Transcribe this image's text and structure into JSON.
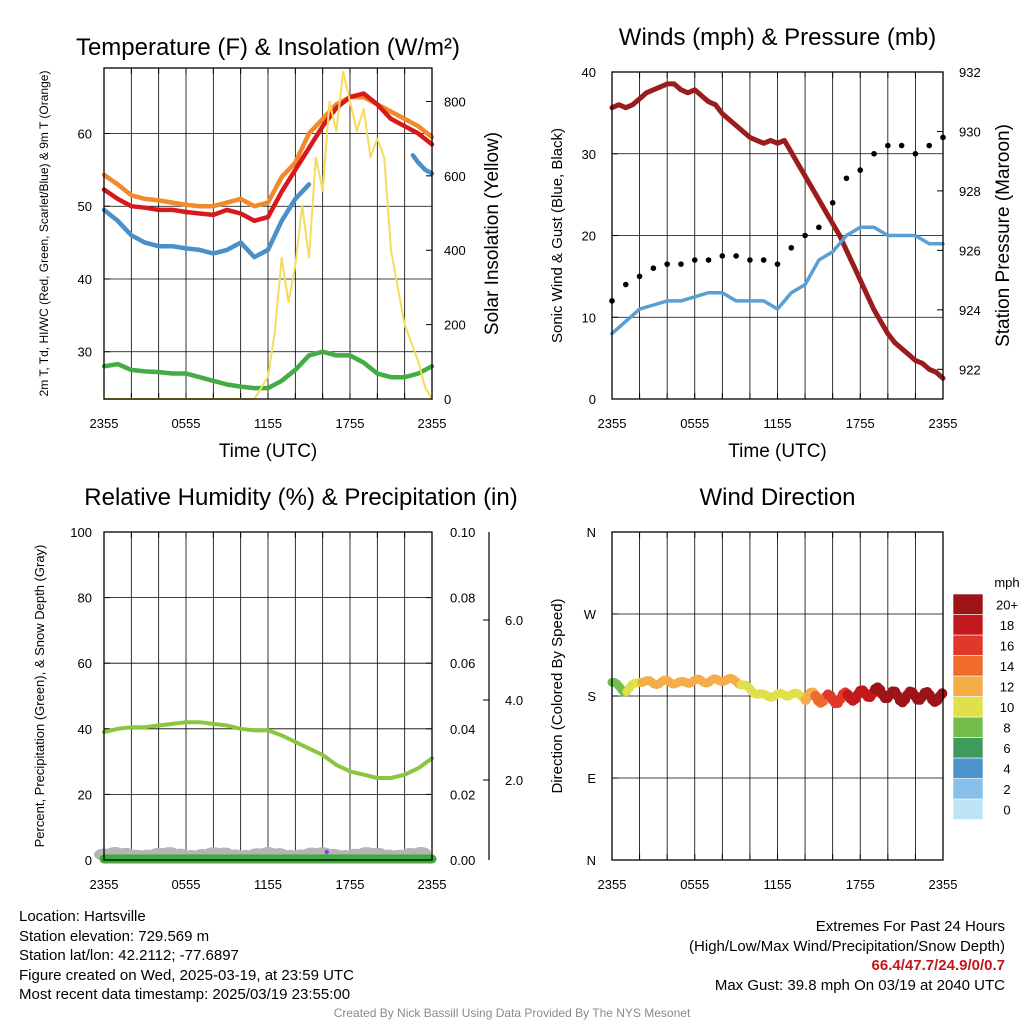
{
  "chart_data": [
    {
      "type": "line",
      "title": "Temperature (F) & Insolation (W/m²)",
      "xlabel": "Time (UTC)",
      "ylabel": "2m T, Td, HI/WC (Red, Green, Scarlet/Blue) & 9m T (Orange)",
      "y2label": "Solar Insolation (Yellow)",
      "xticks": [
        "2355",
        "0555",
        "1155",
        "1755",
        "2355"
      ],
      "x_range_hours": [
        0,
        24
      ],
      "ylim": [
        23.5,
        69
      ],
      "yticks": [
        30,
        40,
        50,
        60
      ],
      "y2lim": [
        0,
        890
      ],
      "y2ticks": [
        0,
        200,
        400,
        600,
        800
      ],
      "grid": true,
      "series": [
        {
          "color": "#f28a2c",
          "axis": "left",
          "x": [
            0,
            1,
            2,
            3,
            4,
            5,
            6,
            7,
            8,
            9,
            10,
            11,
            12,
            13,
            14,
            15,
            16,
            17,
            18,
            19,
            20,
            21,
            22,
            23,
            24
          ],
          "values": [
            54.3,
            53,
            51.5,
            51,
            50.8,
            50.5,
            50.2,
            50,
            50,
            50.5,
            51,
            50,
            50.5,
            54,
            56,
            60,
            62,
            64,
            65,
            65,
            64,
            63,
            62,
            61,
            59.5
          ]
        },
        {
          "color": "#d7191c",
          "axis": "left",
          "x": [
            0,
            1,
            2,
            3,
            4,
            5,
            6,
            7,
            8,
            9,
            10,
            11,
            12,
            13,
            14,
            15,
            16,
            17,
            18,
            19,
            20,
            21,
            22,
            23,
            24
          ],
          "values": [
            52.3,
            51,
            50,
            49.8,
            49.5,
            49.5,
            49.2,
            49,
            48.8,
            49.5,
            49,
            48,
            48.5,
            52,
            55,
            58,
            61,
            63.5,
            65,
            65.5,
            64,
            62,
            61,
            60,
            58.5
          ]
        },
        {
          "color": "#4a8fc8",
          "axis": "left",
          "x": [
            0,
            1,
            2,
            3,
            4,
            5,
            6,
            7,
            8,
            9,
            10,
            11,
            12,
            13,
            14,
            15
          ],
          "values": [
            49.5,
            48,
            46,
            45,
            44.5,
            44.5,
            44.2,
            44,
            43.5,
            44,
            45,
            43,
            44,
            48,
            51,
            53
          ]
        },
        {
          "color": "#4a8fc8",
          "axis": "left",
          "x": [
            22.6,
            23,
            23.5,
            24
          ],
          "values": [
            57,
            56,
            55,
            54.5
          ]
        },
        {
          "color": "#44ac44",
          "axis": "left",
          "x": [
            0,
            1,
            2,
            3,
            4,
            5,
            6,
            7,
            8,
            9,
            10,
            11,
            12,
            13,
            14,
            15,
            16,
            17,
            18,
            19,
            20,
            21,
            22,
            23,
            24
          ],
          "values": [
            28,
            28.3,
            27.5,
            27.3,
            27.2,
            27,
            27,
            26.5,
            26,
            25.5,
            25.2,
            25,
            25,
            26,
            27.5,
            29.5,
            30,
            29.5,
            29.5,
            28.5,
            27,
            26.5,
            26.5,
            27,
            28
          ]
        },
        {
          "color": "#f5dc5a",
          "axis": "right",
          "x": [
            0,
            10,
            11,
            12,
            12.5,
            13,
            13.5,
            14,
            14.5,
            15,
            15.5,
            16,
            16.5,
            17,
            17.5,
            18,
            18.5,
            19,
            19.5,
            20,
            20.5,
            21,
            21.5,
            22,
            22.5,
            23,
            23.5,
            24
          ],
          "values": [
            0,
            0,
            0,
            60,
            180,
            380,
            260,
            360,
            520,
            380,
            650,
            560,
            800,
            720,
            880,
            800,
            720,
            780,
            650,
            700,
            650,
            400,
            300,
            200,
            150,
            100,
            30,
            0
          ]
        }
      ]
    },
    {
      "type": "scatter",
      "title": "Winds (mph) & Pressure (mb)",
      "xlabel": "Time (UTC)",
      "ylabel": "Sonic Wind & Gust (Blue, Black)",
      "y2label": "Station Pressure (Maroon)",
      "xticks": [
        "2355",
        "0555",
        "1155",
        "1755",
        "2355"
      ],
      "x_range_hours": [
        0,
        24
      ],
      "ylim": [
        0,
        40
      ],
      "yticks": [
        0,
        10,
        20,
        30,
        40
      ],
      "y2lim": [
        921,
        932
      ],
      "y2ticks": [
        922,
        924,
        926,
        928,
        930,
        932
      ],
      "grid": true,
      "series": [
        {
          "color": "#9b1c1c",
          "type": "line",
          "axis": "right",
          "x": [
            0,
            0.5,
            1,
            1.5,
            2,
            2.5,
            3,
            3.5,
            4,
            4.5,
            5,
            5.5,
            6,
            6.5,
            7,
            7.5,
            8,
            8.5,
            9,
            9.5,
            10,
            10.5,
            11,
            11.5,
            12,
            12.5,
            13,
            13.5,
            14,
            14.5,
            15,
            15.5,
            16,
            16.5,
            17,
            17.5,
            18,
            18.5,
            19,
            19.5,
            20,
            20.5,
            21,
            21.5,
            22,
            22.5,
            23,
            23.5,
            24
          ],
          "values": [
            930.8,
            930.9,
            930.8,
            930.9,
            931.1,
            931.3,
            931.4,
            931.5,
            931.6,
            931.6,
            931.4,
            931.3,
            931.4,
            931.2,
            931.0,
            930.9,
            930.6,
            930.4,
            930.2,
            930.0,
            929.8,
            929.7,
            929.6,
            929.7,
            929.6,
            929.7,
            929.3,
            928.9,
            928.5,
            928.1,
            927.7,
            927.3,
            926.9,
            926.5,
            926.0,
            925.5,
            925.0,
            924.5,
            924.0,
            923.6,
            923.2,
            922.9,
            922.7,
            922.5,
            922.3,
            922.2,
            922.0,
            921.9,
            921.7
          ]
        },
        {
          "color": "#5a9fd4",
          "type": "line",
          "axis": "left",
          "x": [
            0,
            1,
            2,
            3,
            4,
            5,
            6,
            7,
            8,
            9,
            10,
            11,
            12,
            13,
            14,
            15,
            16,
            17,
            18,
            19,
            20,
            21,
            22,
            23,
            24
          ],
          "values": [
            8,
            9.5,
            11,
            11.5,
            12,
            12,
            12.5,
            13,
            13,
            12,
            12,
            12,
            11,
            13,
            14,
            17,
            18,
            20,
            21,
            21,
            20,
            20,
            20,
            19,
            19
          ]
        },
        {
          "color": "#000000",
          "type": "scatter",
          "axis": "left",
          "x": [
            0,
            1,
            2,
            3,
            4,
            5,
            6,
            7,
            8,
            9,
            10,
            11,
            12,
            13,
            14,
            15,
            16,
            17,
            18,
            19,
            20,
            21,
            22,
            23,
            24
          ],
          "values": [
            12,
            14,
            15,
            16,
            16.5,
            16.5,
            17,
            17,
            17.5,
            17.5,
            17,
            17,
            16.5,
            18.5,
            20,
            21,
            24,
            27,
            28,
            30,
            31,
            31,
            30,
            31,
            32
          ]
        }
      ]
    },
    {
      "type": "line",
      "title": "Relative Humidity (%) & Precipitation (in)",
      "ylabel": "Percent, Precipitation (Green), & Snow Depth (Gray)",
      "xticks": [
        "2355",
        "0555",
        "1155",
        "1755",
        "2355"
      ],
      "x_range_hours": [
        0,
        24
      ],
      "ylim": [
        0,
        100
      ],
      "yticks": [
        0,
        20,
        40,
        60,
        80,
        100
      ],
      "y2lim": [
        0,
        0.1
      ],
      "y2ticks": [
        "0.00",
        "0.02",
        "0.04",
        "0.06",
        "0.08",
        "0.10"
      ],
      "y3lim": [
        0,
        8.2
      ],
      "y3ticks": [
        "2.0",
        "4.0",
        "6.0"
      ],
      "grid": true,
      "series": [
        {
          "color": "#8cc63f",
          "axis": "left",
          "x": [
            0,
            1,
            2,
            3,
            4,
            5,
            6,
            7,
            8,
            9,
            10,
            11,
            12,
            13,
            14,
            15,
            16,
            17,
            18,
            19,
            20,
            21,
            22,
            23,
            24
          ],
          "values": [
            39,
            40,
            40.5,
            40.5,
            41,
            41.5,
            42,
            42,
            41.5,
            41,
            40,
            39.5,
            39.5,
            38,
            36,
            34,
            32,
            29,
            27,
            26,
            25,
            25,
            26,
            28,
            31
          ]
        },
        {
          "color": "#3cab3c",
          "axis": "right",
          "x": [
            0,
            24
          ],
          "values": [
            0,
            0
          ]
        },
        {
          "color": "#b4b4b4",
          "axis": "left",
          "x": [
            0,
            24
          ],
          "values": [
            0.5,
            0.5
          ]
        }
      ]
    },
    {
      "type": "scatter",
      "title": "Wind Direction",
      "ylabel": "Direction (Colored By Speed)",
      "xticks": [
        "2355",
        "0555",
        "1155",
        "1755",
        "2355"
      ],
      "x_range_hours": [
        0,
        24
      ],
      "yticks": [
        "N",
        "E",
        "S",
        "W",
        "N"
      ],
      "ylim": [
        0,
        360
      ],
      "grid": true,
      "colorbar": {
        "unit": "mph",
        "labels": [
          "0",
          "2",
          "4",
          "6",
          "8",
          "10",
          "12",
          "14",
          "16",
          "18",
          "20+"
        ],
        "colors": [
          "#bde4f4",
          "#86c0e8",
          "#4d94cc",
          "#3e9c5a",
          "#74bd4d",
          "#e0e04a",
          "#f5ad4a",
          "#f06a2c",
          "#e0392a",
          "#c4181e",
          "#9c1418"
        ]
      },
      "x": [
        0,
        1,
        2,
        3,
        4,
        5,
        6,
        7,
        8,
        9,
        10,
        11,
        12,
        13,
        14,
        15,
        16,
        17,
        18,
        19,
        20,
        21,
        22,
        23,
        24
      ],
      "values": [
        195,
        185,
        197,
        194,
        196,
        194,
        197,
        196,
        198,
        197,
        187,
        180,
        181,
        182,
        180,
        178,
        176,
        179,
        181,
        185,
        182,
        178,
        181,
        179,
        178
      ],
      "speeds": [
        8,
        10,
        12,
        12,
        12,
        12,
        13,
        13,
        13,
        13,
        10,
        10,
        10,
        11,
        12,
        15,
        17,
        18,
        19,
        20,
        20,
        20,
        20,
        20,
        20
      ]
    }
  ],
  "info": {
    "location": "Location: Hartsville",
    "elevation": "Station elevation: 729.569 m",
    "latlon": "Station lat/lon: 42.2112; -77.6897",
    "created": "Figure created on Wed, 2025-03-19, at 23:59 UTC",
    "recent": "Most recent data timestamp: 2025/03/19 23:55:00"
  },
  "extremes": {
    "title": "Extremes For Past 24 Hours",
    "subtitle": "(High/Low/Max Wind/Precipitation/Snow Depth)",
    "values": "66.4/47.7/24.9/0/0.7",
    "gust": "Max Gust: 39.8 mph On 03/19 at 2040 UTC"
  },
  "credit": "Created By Nick Bassill Using Data Provided By The NYS Mesonet"
}
